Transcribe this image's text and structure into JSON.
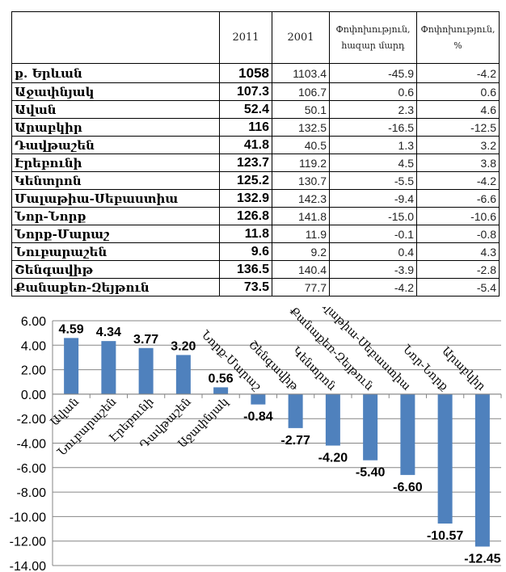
{
  "table": {
    "headers": [
      "",
      "2011",
      "2001",
      "Փոփոխություն, հազար մարդ",
      "Փոփոխություն, %"
    ],
    "rows": [
      [
        "ք. Երևան",
        "1058",
        "1103.4",
        "-45.9",
        "-4.2"
      ],
      [
        "Աջափնյակ",
        "107.3",
        "106.7",
        "0.6",
        "0.6"
      ],
      [
        "Ավան",
        "52.4",
        "50.1",
        "2.3",
        "4.6"
      ],
      [
        "Արաբկիր",
        "116",
        "132.5",
        "-16.5",
        "-12.5"
      ],
      [
        "Դավթաշեն",
        "41.8",
        "40.5",
        "1.3",
        "3.2"
      ],
      [
        "Էրեբունի",
        "123.7",
        "119.2",
        "4.5",
        "3.8"
      ],
      [
        "Կենտրոն",
        "125.2",
        "130.7",
        "-5.5",
        "-4.2"
      ],
      [
        "Մալաթիա-Սեբաստիա",
        "132.9",
        "142.3",
        "-9.4",
        "-6.6"
      ],
      [
        "Նոր-Նորք",
        "126.8",
        "141.8",
        "-15.0",
        "-10.6"
      ],
      [
        "Նորք-Մարաշ",
        "11.8",
        "11.9",
        "-0.1",
        "-0.8"
      ],
      [
        "Նուբարաշեն",
        "9.6",
        "9.2",
        "0.4",
        "4.3"
      ],
      [
        "Շենգավիթ",
        "136.5",
        "140.4",
        "-3.9",
        "-2.8"
      ],
      [
        "Քանաքեռ-Զեյթուն",
        "73.5",
        "77.7",
        "-4.2",
        "-5.4"
      ]
    ]
  },
  "chart_data": {
    "type": "bar",
    "title": "",
    "xlabel": "",
    "ylabel": "",
    "categories": [
      "Ավան",
      "Նուբարաշեն",
      "Էրեբունի",
      "Դավթաշեն",
      "Աջափնյակ",
      "Նորք-Մարաշ",
      "Շենգավիթ",
      "Կենտրոն",
      "Քանաքեռ-Զեյթուն",
      "Մալաթիա-Սեբաստիա",
      "Նոր-Նորք",
      "Արաբկիր"
    ],
    "values": [
      4.59,
      4.34,
      3.77,
      3.2,
      0.56,
      -0.84,
      -2.77,
      -4.2,
      -5.4,
      -6.6,
      -10.57,
      -12.45
    ],
    "value_labels": [
      "4.59",
      "4.34",
      "3.77",
      "3.20",
      "0.56",
      "-0.84",
      "-2.77",
      "-4.20",
      "-5.40",
      "-6.60",
      "-10.57",
      "-12.45"
    ],
    "ylim": [
      -14,
      6
    ],
    "yticks": [
      "6.00",
      "4.00",
      "2.00",
      "0.00",
      "-2.00",
      "-4.00",
      "-6.00",
      "-8.00",
      "-10.00",
      "-12.00",
      "-14.00"
    ],
    "grid": true,
    "bar_color": "#4f81bd"
  }
}
